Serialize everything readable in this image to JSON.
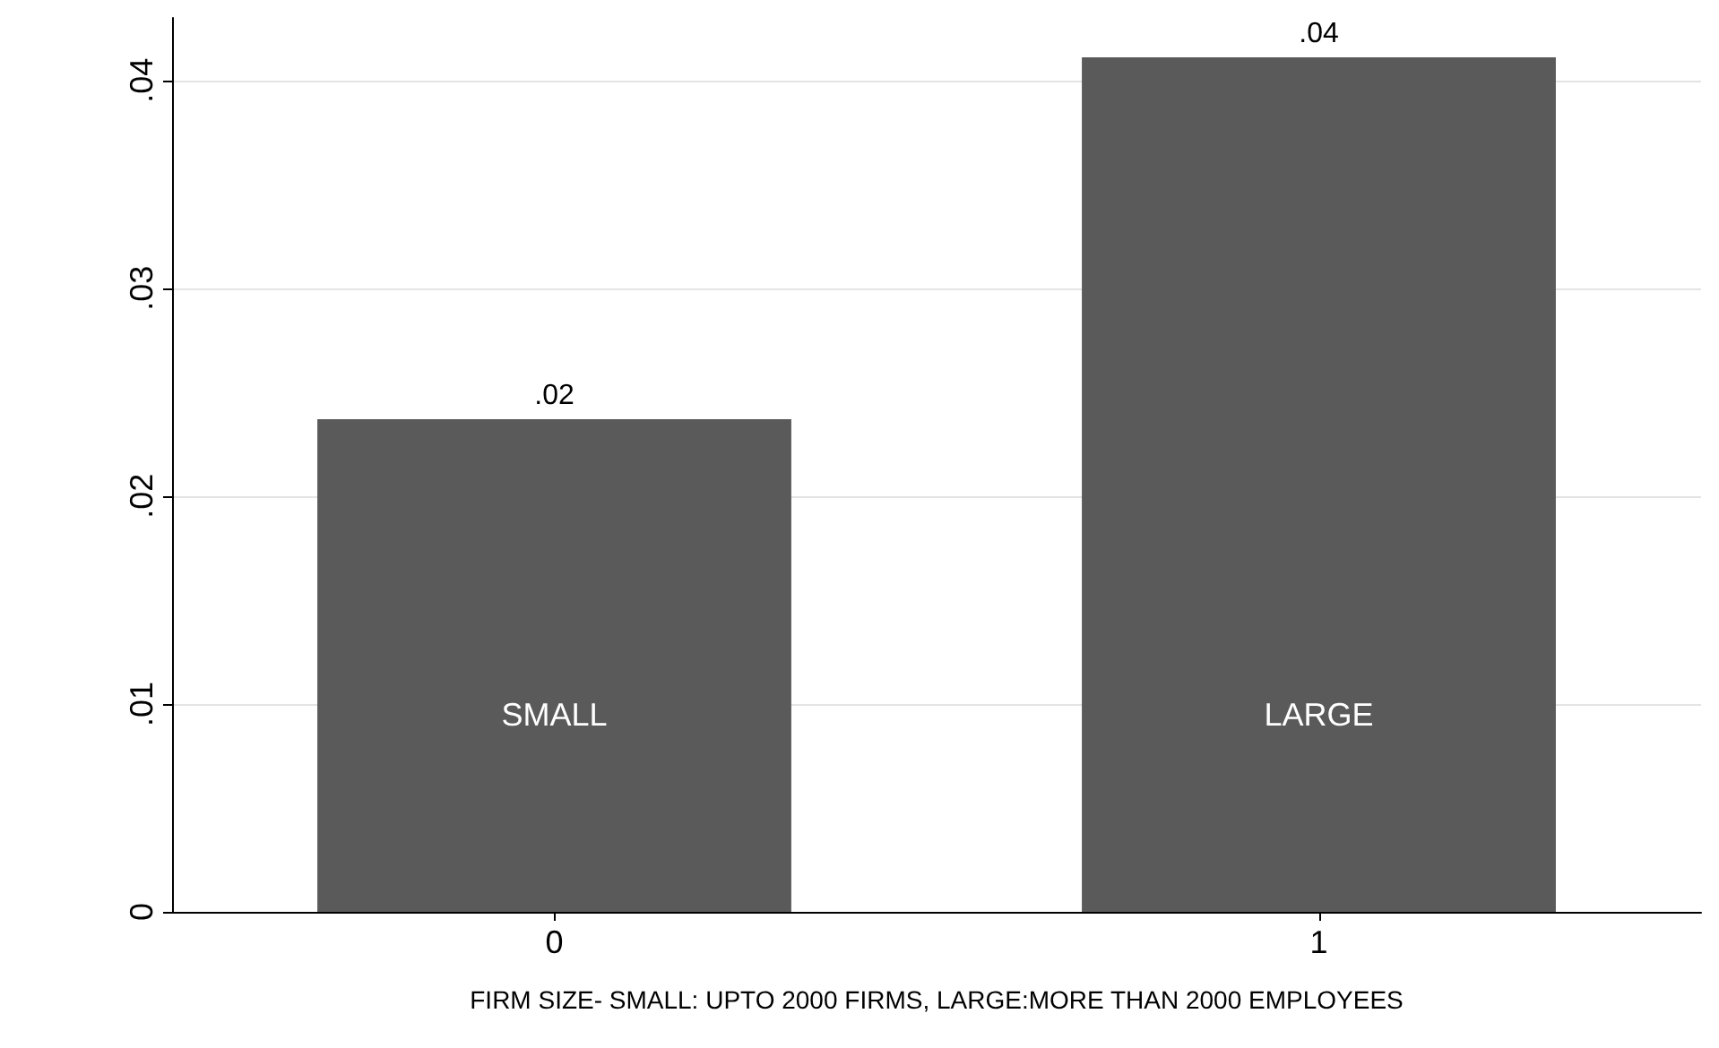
{
  "chart_data": {
    "type": "bar",
    "xlabel": "FIRM SIZE- SMALL: UPTO 2000 FIRMS, LARGE:MORE THAN 2000 EMPLOYEES",
    "categories": [
      "0",
      "1"
    ],
    "values": [
      0.0237,
      0.0411
    ],
    "value_labels": [
      ".02",
      ".04"
    ],
    "color": "#5a5a5a",
    "ylim": [
      0,
      0.043
    ],
    "yticks": [
      0,
      {
        "value": 0.01,
        "label": ".01"
      },
      {
        "value": 0.02,
        "label": ".02"
      },
      {
        "value": 0.03,
        "label": ".03"
      },
      {
        "value": 0.04,
        "label": ".04"
      }
    ],
    "grid": "y",
    "annotations": [
      "SMALL",
      "LARGE"
    ]
  }
}
